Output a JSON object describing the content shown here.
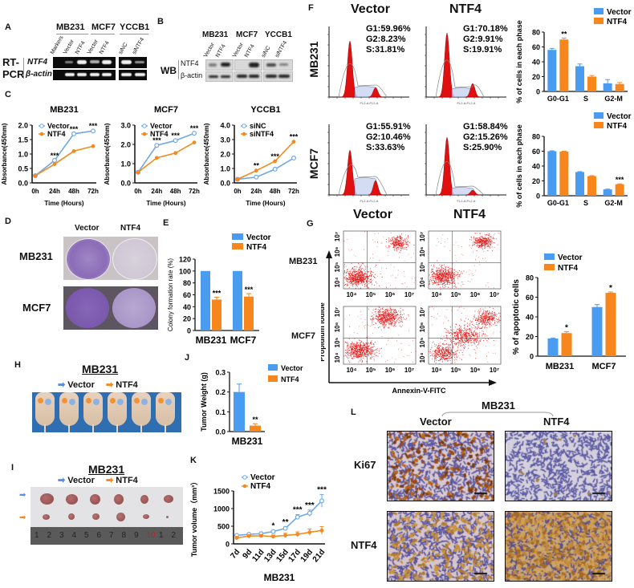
{
  "colors": {
    "vector": "#4a9cf0",
    "ntf4": "#f7861c",
    "vector_line": "#6fa8e8",
    "ntf4_line": "#f28a1e",
    "flow_red": "#e01010"
  },
  "panels": {
    "A": {
      "label": "A",
      "cell_groups": [
        "MB231",
        "MCF7",
        "YCCB1"
      ],
      "lanes": [
        "Markers",
        "Vector",
        "NTF4",
        "Vector",
        "NTF4",
        "siNC",
        "siNTF4"
      ],
      "method_label_1": "RT-",
      "method_label_2": "PCR",
      "rows": [
        "NTF4",
        "β-actin"
      ]
    },
    "B": {
      "label": "B",
      "cell_groups": [
        "MB231",
        "MCF7",
        "YCCB1"
      ],
      "lanes": [
        "Vector",
        "NTF4",
        "Vector",
        "NTF4",
        "siNC",
        "siNTF4"
      ],
      "method_label": "WB",
      "rows": [
        "NTF4",
        "β-actin"
      ]
    },
    "C": {
      "label": "C"
    },
    "D": {
      "label": "D",
      "col_headers": [
        "Vector",
        "NTF4"
      ],
      "row_labels": [
        "MB231",
        "MCF7"
      ]
    },
    "E": {
      "label": "E"
    },
    "F": {
      "label": "F",
      "col_headers_top": [
        "Vector",
        "NTF4"
      ],
      "col_headers_bottom": [
        "Vector",
        "NTF4"
      ],
      "row_labels": [
        "MB231",
        "MCF7"
      ],
      "histograms": [
        {
          "row": "MB231",
          "group": "Vector",
          "lines": [
            "G1:59.96%",
            "G2:8.23%",
            "S:31.81%"
          ]
        },
        {
          "row": "MB231",
          "group": "NTF4",
          "lines": [
            "G1:70.18%",
            "G2:9.91%",
            "S:19.91%"
          ]
        },
        {
          "row": "MCF7",
          "group": "Vector",
          "lines": [
            "G1:55.91%",
            "G2:10.46%",
            "S:33.63%"
          ]
        },
        {
          "row": "MCF7",
          "group": "NTF4",
          "lines": [
            "G1:58.84%",
            "G2:15.26%",
            "S:25.90%"
          ]
        }
      ],
      "hist_xlabel": "FL2-A:FL2-A"
    },
    "G": {
      "label": "G",
      "row_labels": [
        "MB231",
        "MCF7"
      ],
      "ylabel": "Propidium iodide",
      "xlabel": "Annexin-V-FITC",
      "tick_labels": [
        "10⁴",
        "10⁵",
        "10⁶",
        "10⁷"
      ]
    },
    "H": {
      "label": "H",
      "title": "MB231",
      "legend": [
        "Vector",
        "NTF4"
      ]
    },
    "I": {
      "label": "I",
      "title": "MB231",
      "legend": [
        "Vector",
        "NTF4"
      ],
      "ruler_numbers": [
        "1",
        "2",
        "3",
        "4",
        "5",
        "6",
        "7",
        "8",
        "9",
        "10",
        "1",
        "2"
      ]
    },
    "J": {
      "label": "J"
    },
    "K": {
      "label": "K"
    },
    "L": {
      "label": "L",
      "group_title": "MB231",
      "col_headers": [
        "Vector",
        "NTF4"
      ],
      "row_labels": [
        "Ki67",
        "NTF4"
      ]
    }
  },
  "chart_data": [
    {
      "id": "C1",
      "type": "line",
      "title": "MB231",
      "xlabel": "Time (Hours)",
      "ylabel": "Absorbance(450nm)",
      "categories": [
        "0h",
        "24h",
        "48h",
        "72h"
      ],
      "ylim": [
        0,
        2.0
      ],
      "yticks": [
        "0.0",
        "0.5",
        "1.0",
        "1.5",
        "2.0"
      ],
      "series": [
        {
          "name": "Vector",
          "values": [
            0.25,
            0.78,
            1.7,
            1.8
          ]
        },
        {
          "name": "NTF4",
          "values": [
            0.25,
            0.65,
            1.1,
            1.27
          ]
        }
      ],
      "annotations": [
        "",
        "***",
        "***",
        "***"
      ]
    },
    {
      "id": "C2",
      "type": "line",
      "title": "MCF7",
      "xlabel": "Time (Hours)",
      "ylabel": "Absorbance(450nm)",
      "categories": [
        "0h",
        "24h",
        "48h",
        "72h"
      ],
      "ylim": [
        0,
        3.0
      ],
      "yticks": [
        "0.0",
        "1.0",
        "2.0",
        "3.0"
      ],
      "series": [
        {
          "name": "Vector",
          "values": [
            0.55,
            1.95,
            2.2,
            2.58
          ]
        },
        {
          "name": "NTF4",
          "values": [
            0.55,
            1.3,
            1.55,
            2.1
          ]
        }
      ],
      "annotations": [
        "",
        "***",
        "***",
        "***"
      ]
    },
    {
      "id": "C3",
      "type": "line",
      "title": "YCCB1",
      "xlabel": "Time (Hours)",
      "ylabel": "Absorbance(450nm)",
      "categories": [
        "0h",
        "24h",
        "48h",
        "72h"
      ],
      "ylim": [
        0,
        4.0
      ],
      "yticks": [
        "0.0",
        "1.0",
        "2.0",
        "3.0",
        "4.0"
      ],
      "series": [
        {
          "name": "siNC",
          "values": [
            0.25,
            0.4,
            0.95,
            1.72
          ]
        },
        {
          "name": "siNTF4",
          "values": [
            0.25,
            0.85,
            1.5,
            2.85
          ]
        }
      ],
      "annotations": [
        "",
        "**",
        "***",
        "***"
      ]
    },
    {
      "id": "E",
      "type": "bar",
      "title": "",
      "xlabel": "",
      "ylabel": "Colony formation rate (%)",
      "categories": [
        "MB231",
        "MCF7"
      ],
      "ylim": [
        0,
        120
      ],
      "yticks": [
        "0",
        "20",
        "40",
        "60",
        "80",
        "100",
        "120"
      ],
      "series": [
        {
          "name": "Vector",
          "values": [
            100,
            100
          ],
          "errors": [
            0,
            0
          ]
        },
        {
          "name": "NTF4",
          "values": [
            52,
            57
          ],
          "errors": [
            4,
            5
          ]
        }
      ],
      "annotations": [
        "***",
        "***"
      ],
      "legend": "top-right"
    },
    {
      "id": "F1",
      "type": "bar",
      "title": "",
      "xlabel": "",
      "ylabel": "% of cells in each phase",
      "categories": [
        "G0-G1",
        "S",
        "G2-M"
      ],
      "ylim": [
        0,
        80
      ],
      "yticks": [
        "0",
        "20",
        "40",
        "60",
        "80"
      ],
      "series": [
        {
          "name": "Vector",
          "values": [
            56,
            34,
            11
          ],
          "errors": [
            2,
            3,
            5
          ]
        },
        {
          "name": "NTF4",
          "values": [
            70,
            20,
            10
          ],
          "errors": [
            2,
            1.5,
            2
          ]
        }
      ],
      "annotations": [
        "**",
        "",
        ""
      ],
      "legend": "top-right"
    },
    {
      "id": "F2",
      "type": "bar",
      "title": "",
      "xlabel": "",
      "ylabel": "% of cells in each phase",
      "categories": [
        "G0-G1",
        "S",
        "G2-M"
      ],
      "ylim": [
        0,
        80
      ],
      "yticks": [
        "0",
        "20",
        "40",
        "60",
        "80"
      ],
      "series": [
        {
          "name": "Vector",
          "values": [
            60,
            32,
            8.5
          ],
          "errors": [
            0.5,
            0.5,
            0.5
          ]
        },
        {
          "name": "NTF4",
          "values": [
            59.5,
            26.5,
            15.5
          ],
          "errors": [
            0.5,
            0.5,
            0.5
          ]
        }
      ],
      "annotations": [
        "",
        "",
        "***"
      ],
      "legend": "top-right"
    },
    {
      "id": "G",
      "type": "bar",
      "title": "",
      "xlabel": "",
      "ylabel": "% of apoptotic cells",
      "categories": [
        "MB231",
        "MCF7"
      ],
      "ylim": [
        0,
        80
      ],
      "yticks": [
        "0",
        "20",
        "40",
        "60",
        "80"
      ],
      "series": [
        {
          "name": "Vector",
          "values": [
            18,
            50
          ],
          "errors": [
            0.5,
            2.5
          ]
        },
        {
          "name": "NTF4",
          "values": [
            23.5,
            64.5
          ],
          "errors": [
            1.5,
            0.8
          ]
        }
      ],
      "annotations": [
        "*",
        "*"
      ],
      "legend": "top-left"
    },
    {
      "id": "J",
      "type": "bar",
      "title": "",
      "xlabel": "MB231",
      "ylabel": "Tumor Weight (g)",
      "categories": [
        "MB231"
      ],
      "ylim": [
        0,
        0.3
      ],
      "yticks": [
        "0.0",
        "0.1",
        "0.2",
        "0.3"
      ],
      "series": [
        {
          "name": "Vector",
          "values": [
            0.2
          ],
          "errors": [
            0.04
          ]
        },
        {
          "name": "NTF4",
          "values": [
            0.03
          ],
          "errors": [
            0.01
          ]
        }
      ],
      "annotations": [
        "**"
      ],
      "legend": "top-right"
    },
    {
      "id": "K",
      "type": "line",
      "title": "",
      "xlabel": "MB231",
      "ylabel": "Tumor volume（mm³）",
      "categories": [
        "7d",
        "9d",
        "11d",
        "13d",
        "15d",
        "17d",
        "19d",
        "21d"
      ],
      "ylim": [
        0,
        1500
      ],
      "yticks": [
        "0",
        "500",
        "1000",
        "1500"
      ],
      "series": [
        {
          "name": "Vector",
          "values": [
            240,
            270,
            290,
            350,
            440,
            760,
            870,
            1220
          ],
          "errors": [
            20,
            20,
            20,
            30,
            40,
            70,
            90,
            180
          ]
        },
        {
          "name": "NTF4",
          "values": [
            170,
            220,
            230,
            210,
            240,
            270,
            330,
            380
          ],
          "errors": [
            40,
            40,
            40,
            40,
            60,
            70,
            90,
            110
          ]
        }
      ],
      "annotations": [
        "",
        "",
        "",
        "*",
        "**",
        "***",
        "***",
        "***"
      ],
      "legend": "top-left"
    }
  ]
}
